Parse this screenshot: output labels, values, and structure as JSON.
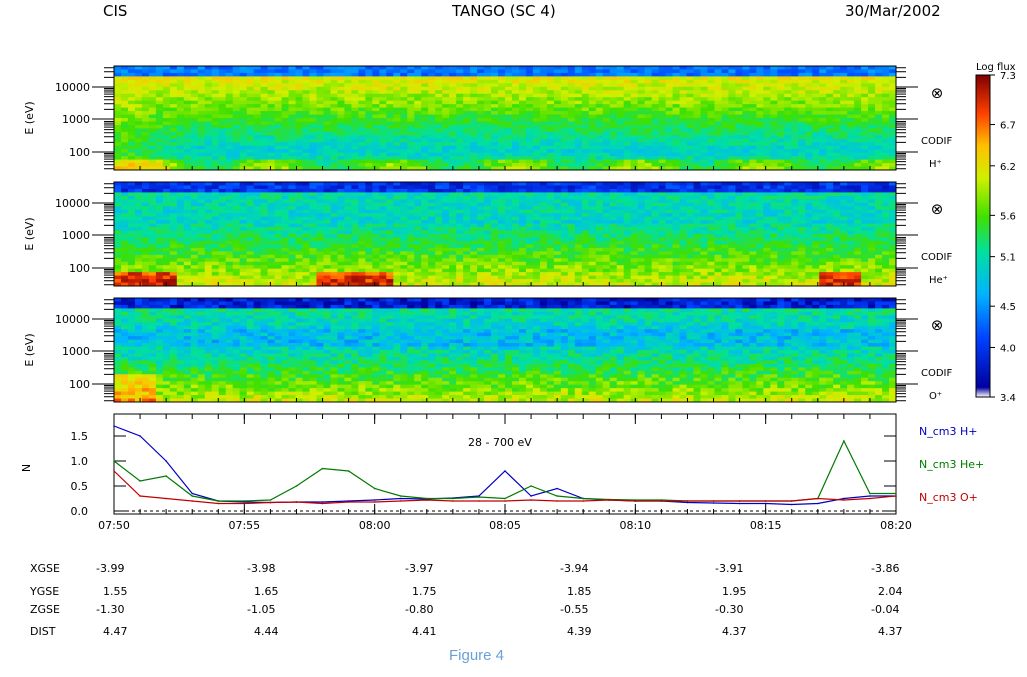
{
  "header": {
    "instrument": "CIS",
    "title": "TANGO (SC 4)",
    "date": "30/Mar/2002"
  },
  "colorbar": {
    "label": "Log flux",
    "ticks": [
      "7.3",
      "6.7",
      "6.2",
      "5.6",
      "5.1",
      "4.5",
      "4.0",
      "3.4"
    ],
    "range": [
      3.4,
      7.3
    ]
  },
  "panels": [
    {
      "ylabel": "E (eV)",
      "yticks": [
        "10000",
        "1000",
        "100"
      ],
      "symbol": "⊗",
      "instrument": "CODIF",
      "species": "H⁺"
    },
    {
      "ylabel": "E (eV)",
      "yticks": [
        "10000",
        "1000",
        "100"
      ],
      "symbol": "⊗",
      "instrument": "CODIF",
      "species": "He⁺"
    },
    {
      "ylabel": "E (eV)",
      "yticks": [
        "10000",
        "1000",
        "100"
      ],
      "symbol": "⊗",
      "instrument": "CODIF",
      "species": "O⁺"
    }
  ],
  "chart_data": {
    "type": "line",
    "ylabel": "N",
    "annotation": "28 - 700 eV",
    "x_ticks": [
      "07:50",
      "07:55",
      "08:00",
      "08:05",
      "08:10",
      "08:15",
      "08:20"
    ],
    "y_ticks": [
      "0.0",
      "0.5",
      "1.0",
      "1.5"
    ],
    "ylim": [
      0,
      1.85
    ],
    "x": [
      "07:50",
      "07:51",
      "07:52",
      "07:53",
      "07:54",
      "07:55",
      "07:56",
      "07:57",
      "07:58",
      "07:59",
      "08:00",
      "08:01",
      "08:02",
      "08:03",
      "08:04",
      "08:05",
      "08:06",
      "08:07",
      "08:08",
      "08:09",
      "08:10",
      "08:11",
      "08:12",
      "08:13",
      "08:14",
      "08:15",
      "08:16",
      "08:17",
      "08:18",
      "08:19",
      "08:20"
    ],
    "series": [
      {
        "name": "N_cm3  H+",
        "color": "#0000c0",
        "values": [
          1.7,
          1.5,
          1.0,
          0.35,
          0.2,
          0.18,
          0.17,
          0.18,
          0.18,
          0.2,
          0.22,
          0.25,
          0.24,
          0.26,
          0.3,
          0.8,
          0.3,
          0.45,
          0.25,
          0.22,
          0.2,
          0.2,
          0.17,
          0.16,
          0.15,
          0.15,
          0.13,
          0.15,
          0.25,
          0.3,
          0.3
        ]
      },
      {
        "name": "N_cm3  He+",
        "color": "#007a00",
        "values": [
          1.0,
          0.6,
          0.7,
          0.3,
          0.2,
          0.2,
          0.22,
          0.5,
          0.85,
          0.8,
          0.45,
          0.3,
          0.25,
          0.25,
          0.28,
          0.25,
          0.5,
          0.3,
          0.25,
          0.23,
          0.22,
          0.22,
          0.2,
          0.2,
          0.2,
          0.2,
          0.2,
          0.25,
          1.4,
          0.35,
          0.35
        ]
      },
      {
        "name": "N_cm3  O+",
        "color": "#c00000",
        "values": [
          0.8,
          0.3,
          0.25,
          0.2,
          0.15,
          0.15,
          0.17,
          0.18,
          0.15,
          0.18,
          0.18,
          0.2,
          0.22,
          0.2,
          0.2,
          0.2,
          0.22,
          0.2,
          0.2,
          0.22,
          0.2,
          0.2,
          0.2,
          0.2,
          0.2,
          0.2,
          0.2,
          0.25,
          0.22,
          0.25,
          0.3
        ]
      }
    ]
  },
  "orbit": {
    "rows": [
      {
        "label": "XGSE",
        "values": [
          "-3.99",
          "-3.98",
          "-3.97",
          "-3.94",
          "-3.91",
          "-3.86"
        ]
      },
      {
        "label": "YGSE",
        "values": [
          "1.55",
          "1.65",
          "1.75",
          "1.85",
          "1.95",
          "2.04"
        ]
      },
      {
        "label": "ZGSE",
        "values": [
          "-1.30",
          "-1.05",
          "-0.80",
          "-0.55",
          "-0.30",
          "-0.04"
        ]
      },
      {
        "label": "DIST",
        "values": [
          "4.47",
          "4.44",
          "4.41",
          "4.39",
          "4.37",
          "4.37"
        ]
      }
    ]
  },
  "caption": "Figure 4"
}
